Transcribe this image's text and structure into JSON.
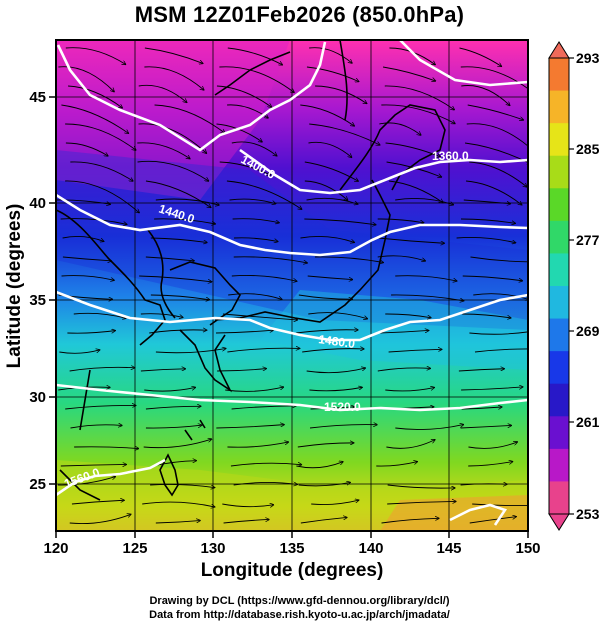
{
  "title": "MSM 12Z01Feb2026 (850.0hPa)",
  "map": {
    "xlabel": "Longitude (degrees)",
    "ylabel": "Latitude  (degrees)",
    "lon_range": [
      120,
      150
    ],
    "lat_range": [
      22.5,
      48
    ],
    "lon_ticks": [
      "120",
      "125",
      "130",
      "135",
      "140",
      "145",
      "150"
    ],
    "lat_ticks": [
      "25",
      "30",
      "35",
      "40",
      "45"
    ],
    "grid": true,
    "shaded_field": "temperature (K)",
    "vectors": "wind streamlines",
    "contour_field": "geopotential height (m)"
  },
  "contours": [
    {
      "label": "1360.0"
    },
    {
      "label": "1400.0"
    },
    {
      "label": "1440.0"
    },
    {
      "label": "1480.0"
    },
    {
      "label": "1520.0"
    },
    {
      "label": "1560.0"
    }
  ],
  "colorbar": {
    "ticks": [
      "293",
      "285",
      "277",
      "269",
      "261",
      "253"
    ],
    "min": 253,
    "max": 293,
    "colors": [
      "#e8428c",
      "#b818c8",
      "#6a10d0",
      "#2818c8",
      "#1838e8",
      "#1e78ea",
      "#20b8e0",
      "#22d8b0",
      "#30d868",
      "#5ad828",
      "#a8dc18",
      "#e6e418",
      "#f6b428",
      "#f47a30"
    ]
  },
  "credits": {
    "line1": "Drawing by DCL (https://www.gfd-dennou.org/library/dcl/)",
    "line2": "Data from http://database.rish.kyoto-u.ac.jp/arch/jmadata/"
  }
}
